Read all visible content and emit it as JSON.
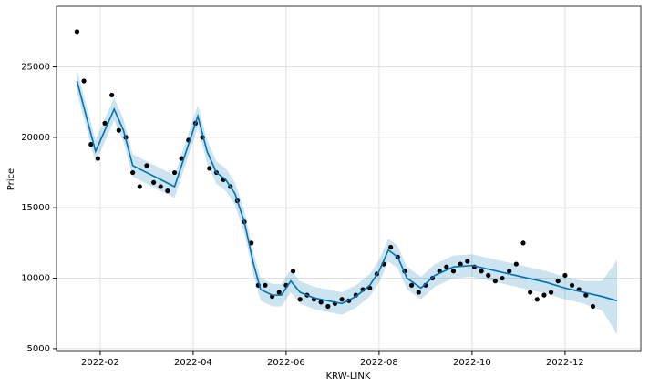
{
  "chart_data": {
    "type": "forecast",
    "xlabel": "KRW-LINK",
    "ylabel": "Price",
    "xlim": [
      1.06,
      13.63
    ],
    "xticks": [
      {
        "value": 2,
        "label": "2022-02"
      },
      {
        "value": 4,
        "label": "2022-04"
      },
      {
        "value": 6,
        "label": "2022-06"
      },
      {
        "value": 8,
        "label": "2022-08"
      },
      {
        "value": 10,
        "label": "2022-10"
      },
      {
        "value": 12,
        "label": "2022-12"
      }
    ],
    "ylim": [
      4800,
      29300
    ],
    "yticks": [
      5000,
      10000,
      15000,
      20000,
      25000
    ],
    "grid": true,
    "observed": {
      "color": "#000000",
      "x": [
        1.5,
        1.65,
        1.8,
        1.95,
        2.1,
        2.25,
        2.4,
        2.55,
        2.7,
        2.85,
        3.0,
        3.15,
        3.3,
        3.45,
        3.6,
        3.75,
        3.9,
        4.05,
        4.2,
        4.35,
        4.5,
        4.65,
        4.8,
        4.95,
        5.1,
        5.25,
        5.4,
        5.55,
        5.7,
        5.85,
        6.0,
        6.15,
        6.3,
        6.45,
        6.6,
        6.75,
        6.9,
        7.05,
        7.2,
        7.35,
        7.5,
        7.65,
        7.8,
        7.95,
        8.1,
        8.25,
        8.4,
        8.55,
        8.7,
        8.85,
        9.0,
        9.15,
        9.3,
        9.45,
        9.6,
        9.75,
        9.9,
        10.05,
        10.2,
        10.35,
        10.5,
        10.65,
        10.8,
        10.95,
        11.1,
        11.25,
        11.4,
        11.55,
        11.7,
        11.85,
        12.0,
        12.15,
        12.3,
        12.45,
        12.6
      ],
      "values": [
        27500,
        24000,
        19500,
        18500,
        21000,
        23000,
        20500,
        20000,
        17500,
        16500,
        18000,
        16800,
        16500,
        16200,
        17500,
        18500,
        19800,
        21000,
        20000,
        17800,
        17500,
        17000,
        16500,
        15500,
        14000,
        12500,
        9500,
        9500,
        8700,
        9000,
        9500,
        10500,
        8500,
        8800,
        8500,
        8300,
        8000,
        8200,
        8500,
        8400,
        8800,
        9200,
        9300,
        10300,
        11000,
        12200,
        11500,
        10500,
        9500,
        9000,
        9500,
        10000,
        10500,
        10800,
        10500,
        11000,
        11200,
        10800,
        10500,
        10200,
        9800,
        10000,
        10500,
        11000,
        12500,
        9000,
        8500,
        8800,
        9000,
        9800,
        10200,
        9500,
        9200,
        8800,
        8000
      ]
    },
    "forecast": {
      "color": "#0072b2",
      "band_color": "#0072b2",
      "x": [
        1.5,
        1.7,
        1.9,
        2.1,
        2.3,
        2.5,
        2.7,
        3.0,
        3.3,
        3.6,
        3.8,
        4.0,
        4.1,
        4.3,
        4.5,
        4.7,
        4.9,
        5.1,
        5.3,
        5.45,
        5.7,
        5.9,
        6.1,
        6.3,
        6.6,
        6.9,
        7.2,
        7.5,
        7.8,
        8.0,
        8.2,
        8.4,
        8.6,
        8.9,
        9.2,
        9.6,
        10.0,
        10.4,
        10.8,
        11.2,
        11.6,
        12.0,
        12.4,
        12.8,
        13.12
      ],
      "values": [
        24000,
        21500,
        19000,
        20500,
        22000,
        20500,
        18000,
        17500,
        17000,
        16500,
        18500,
        20500,
        21500,
        19000,
        17500,
        17000,
        16000,
        14000,
        11000,
        9200,
        8800,
        8800,
        9800,
        9000,
        8600,
        8400,
        8200,
        8700,
        9500,
        10500,
        12000,
        11500,
        10000,
        9300,
        10200,
        10800,
        10900,
        10600,
        10300,
        10000,
        9700,
        9300,
        9000,
        8700,
        8400
      ],
      "lower": [
        23200,
        20700,
        18200,
        19700,
        21200,
        19700,
        17200,
        16700,
        16200,
        15700,
        17700,
        19700,
        20700,
        18200,
        16700,
        16200,
        15200,
        13200,
        10200,
        8400,
        8000,
        8000,
        9000,
        8200,
        7800,
        7600,
        7400,
        7900,
        8700,
        9700,
        11200,
        10700,
        9200,
        8500,
        9400,
        10000,
        10100,
        9800,
        9500,
        9200,
        8900,
        8500,
        8200,
        7700,
        6000
      ],
      "upper": [
        24800,
        22300,
        19800,
        21300,
        22800,
        21300,
        18800,
        18300,
        17800,
        17300,
        19300,
        21300,
        22300,
        19800,
        18300,
        17800,
        16800,
        14800,
        11800,
        10000,
        9600,
        9600,
        10600,
        9800,
        9400,
        9200,
        9000,
        9500,
        10300,
        11300,
        12800,
        12300,
        10800,
        10100,
        11000,
        11600,
        11700,
        11400,
        11100,
        10800,
        10500,
        10100,
        9800,
        9800,
        11300
      ]
    }
  }
}
